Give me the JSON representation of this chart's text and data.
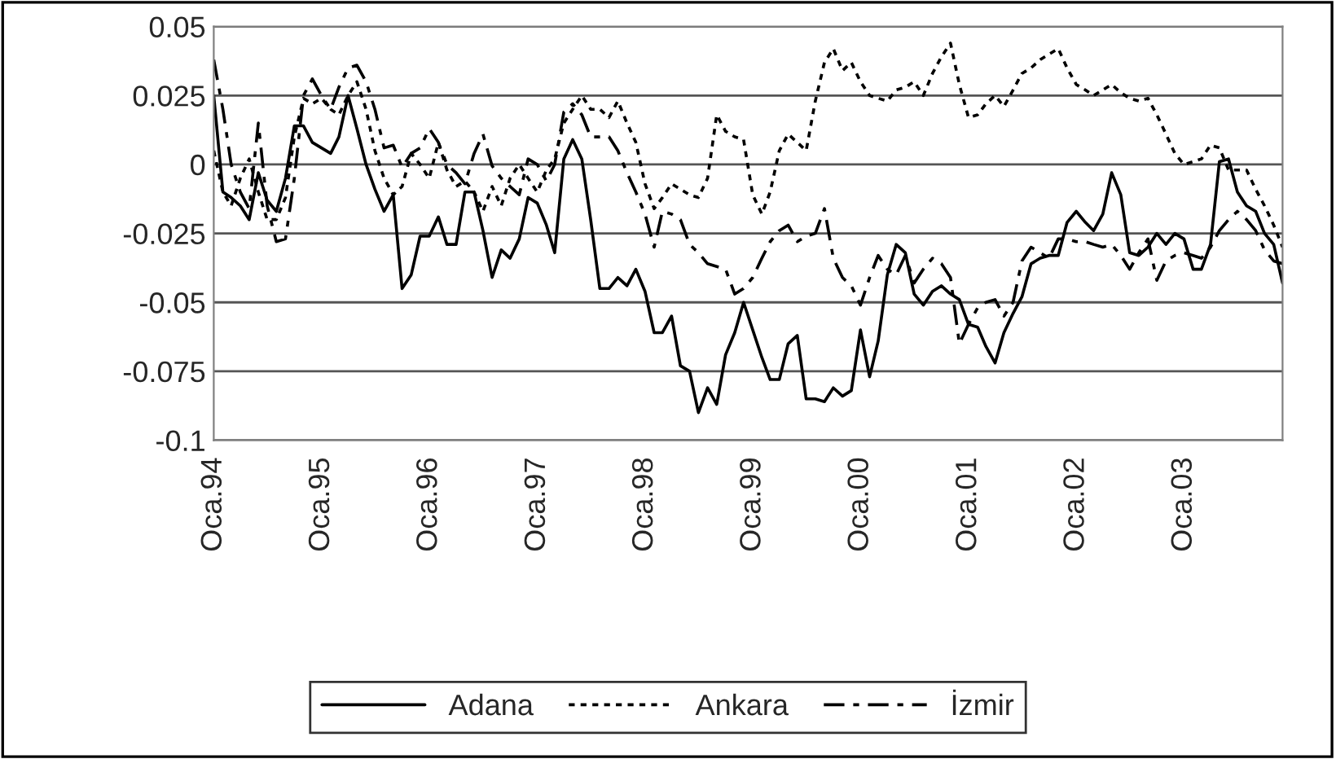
{
  "chart_data": {
    "type": "line",
    "x": [
      "1994-01",
      "1994-02",
      "1994-03",
      "1994-04",
      "1994-05",
      "1994-06",
      "1994-07",
      "1994-08",
      "1994-09",
      "1994-10",
      "1994-11",
      "1994-12",
      "1995-01",
      "1995-02",
      "1995-03",
      "1995-04",
      "1995-05",
      "1995-06",
      "1995-07",
      "1995-08",
      "1995-09",
      "1995-10",
      "1995-11",
      "1995-12",
      "1996-01",
      "1996-02",
      "1996-03",
      "1996-04",
      "1996-05",
      "1996-06",
      "1996-07",
      "1996-08",
      "1996-09",
      "1996-10",
      "1996-11",
      "1996-12",
      "1997-01",
      "1997-02",
      "1997-03",
      "1997-04",
      "1997-05",
      "1997-06",
      "1997-07",
      "1997-08",
      "1997-09",
      "1997-10",
      "1997-11",
      "1997-12",
      "1998-01",
      "1998-02",
      "1998-03",
      "1998-04",
      "1998-05",
      "1998-06",
      "1998-07",
      "1998-08",
      "1998-09",
      "1998-10",
      "1998-11",
      "1998-12",
      "1999-01",
      "1999-02",
      "1999-03",
      "1999-04",
      "1999-05",
      "1999-06",
      "1999-07",
      "1999-08",
      "1999-09",
      "1999-10",
      "1999-11",
      "1999-12",
      "2000-01",
      "2000-02",
      "2000-03",
      "2000-04",
      "2000-05",
      "2000-06",
      "2000-07",
      "2000-08",
      "2000-09",
      "2000-10",
      "2000-11",
      "2000-12",
      "2001-01",
      "2001-02",
      "2001-03",
      "2001-04",
      "2001-05",
      "2001-06",
      "2001-07",
      "2001-08",
      "2001-09",
      "2001-10",
      "2001-11",
      "2001-12",
      "2002-01",
      "2002-02",
      "2002-03",
      "2002-04",
      "2002-05",
      "2002-06",
      "2002-07",
      "2002-08",
      "2002-09",
      "2002-10",
      "2002-11",
      "2002-12",
      "2003-01",
      "2003-02",
      "2003-03",
      "2003-04",
      "2003-05",
      "2003-06",
      "2003-07",
      "2003-08",
      "2003-09",
      "2003-10",
      "2003-11",
      "2003-12"
    ],
    "series": [
      {
        "name": "Adana",
        "color": "#000000",
        "line_style": "solid",
        "values": [
          0.025,
          -0.01,
          -0.012,
          -0.015,
          -0.02,
          -0.003,
          -0.013,
          -0.017,
          -0.005,
          0.014,
          0.014,
          0.008,
          0.006,
          0.004,
          0.01,
          0.025,
          0.013,
          0.0,
          -0.009,
          -0.017,
          -0.011,
          -0.045,
          -0.04,
          -0.026,
          -0.026,
          -0.019,
          -0.029,
          -0.029,
          -0.01,
          -0.01,
          -0.024,
          -0.041,
          -0.031,
          -0.034,
          -0.027,
          -0.012,
          -0.014,
          -0.022,
          -0.032,
          0.002,
          0.009,
          0.002,
          -0.02,
          -0.045,
          -0.045,
          -0.041,
          -0.044,
          -0.038,
          -0.046,
          -0.061,
          -0.061,
          -0.055,
          -0.073,
          -0.075,
          -0.09,
          -0.081,
          -0.087,
          -0.069,
          -0.061,
          -0.05,
          -0.06,
          -0.07,
          -0.078,
          -0.078,
          -0.065,
          -0.062,
          -0.085,
          -0.085,
          -0.086,
          -0.081,
          -0.084,
          -0.082,
          -0.06,
          -0.077,
          -0.064,
          -0.04,
          -0.029,
          -0.032,
          -0.047,
          -0.051,
          -0.046,
          -0.044,
          -0.047,
          -0.049,
          -0.058,
          -0.059,
          -0.066,
          -0.072,
          -0.061,
          -0.054,
          -0.048,
          -0.036,
          -0.034,
          -0.033,
          -0.033,
          -0.021,
          -0.017,
          -0.021,
          -0.024,
          -0.018,
          -0.003,
          -0.011,
          -0.032,
          -0.033,
          -0.03,
          -0.025,
          -0.029,
          -0.025,
          -0.027,
          -0.038,
          -0.038,
          -0.029,
          0.001,
          0.002,
          -0.01,
          -0.015,
          -0.017,
          -0.025,
          -0.029,
          -0.043
        ]
      },
      {
        "name": "Ankara",
        "color": "#000000",
        "line_style": "dotted",
        "values": [
          0.005,
          -0.01,
          -0.015,
          -0.005,
          0.002,
          -0.01,
          -0.02,
          -0.02,
          -0.012,
          0.01,
          0.024,
          0.022,
          0.024,
          0.02,
          0.018,
          0.025,
          0.03,
          0.02,
          0.005,
          -0.005,
          -0.011,
          -0.008,
          0.004,
          0.0,
          -0.005,
          0.008,
          -0.002,
          -0.008,
          -0.006,
          -0.01,
          -0.017,
          -0.008,
          -0.015,
          -0.005,
          0.0,
          -0.005,
          -0.01,
          -0.002,
          0.002,
          0.015,
          0.02,
          0.025,
          0.02,
          0.02,
          0.017,
          0.023,
          0.015,
          0.008,
          -0.007,
          -0.016,
          -0.012,
          -0.007,
          -0.009,
          -0.011,
          -0.012,
          -0.005,
          0.018,
          0.012,
          0.01,
          0.009,
          -0.011,
          -0.018,
          -0.01,
          0.005,
          0.011,
          0.008,
          0.005,
          0.023,
          0.037,
          0.042,
          0.034,
          0.037,
          0.03,
          0.025,
          0.024,
          0.023,
          0.027,
          0.028,
          0.03,
          0.025,
          0.033,
          0.039,
          0.044,
          0.029,
          0.017,
          0.018,
          0.022,
          0.025,
          0.021,
          0.027,
          0.033,
          0.035,
          0.038,
          0.04,
          0.042,
          0.035,
          0.029,
          0.027,
          0.025,
          0.027,
          0.029,
          0.026,
          0.024,
          0.023,
          0.024,
          0.018,
          0.011,
          0.004,
          0.0,
          0.001,
          0.002,
          0.007,
          0.006,
          -0.002,
          -0.002,
          -0.002,
          -0.009,
          -0.015,
          -0.022,
          -0.03
        ]
      },
      {
        "name": "İzmir",
        "color": "#000000",
        "line_style": "dashed",
        "values": [
          0.038,
          0.02,
          0.0,
          -0.01,
          -0.016,
          0.015,
          -0.015,
          -0.028,
          -0.027,
          -0.005,
          0.025,
          0.031,
          0.025,
          0.02,
          0.028,
          0.035,
          0.036,
          0.03,
          0.02,
          0.006,
          0.007,
          -0.001,
          0.004,
          0.006,
          0.013,
          0.008,
          0.0,
          -0.003,
          -0.007,
          0.004,
          0.011,
          -0.0005,
          -0.005,
          -0.008,
          -0.011,
          0.002,
          0.0,
          -0.006,
          0.0,
          0.019,
          0.022,
          0.018,
          0.01,
          0.01,
          0.01,
          0.005,
          -0.003,
          -0.01,
          -0.018,
          -0.03,
          -0.017,
          -0.018,
          -0.02,
          -0.029,
          -0.032,
          -0.036,
          -0.037,
          -0.038,
          -0.047,
          -0.045,
          -0.041,
          -0.034,
          -0.028,
          -0.024,
          -0.022,
          -0.028,
          -0.026,
          -0.025,
          -0.016,
          -0.034,
          -0.041,
          -0.044,
          -0.051,
          -0.041,
          -0.033,
          -0.038,
          -0.04,
          -0.033,
          -0.043,
          -0.038,
          -0.034,
          -0.036,
          -0.041,
          -0.065,
          -0.058,
          -0.052,
          -0.05,
          -0.049,
          -0.055,
          -0.05,
          -0.035,
          -0.03,
          -0.032,
          -0.034,
          -0.027,
          -0.027,
          -0.028,
          -0.028,
          -0.029,
          -0.03,
          -0.029,
          -0.033,
          -0.038,
          -0.032,
          -0.027,
          -0.042,
          -0.035,
          -0.033,
          -0.032,
          -0.033,
          -0.034,
          -0.03,
          -0.024,
          -0.02,
          -0.017,
          -0.02,
          -0.024,
          -0.031,
          -0.035,
          -0.036
        ]
      }
    ],
    "xlim": [
      "1994-01",
      "2003-12"
    ],
    "xticks": [
      {
        "value": "1994-01",
        "label": "Oca.94"
      },
      {
        "value": "1995-01",
        "label": "Oca.95"
      },
      {
        "value": "1996-01",
        "label": "Oca.96"
      },
      {
        "value": "1997-01",
        "label": "Oca.97"
      },
      {
        "value": "1998-01",
        "label": "Oca.98"
      },
      {
        "value": "1999-01",
        "label": "Oca.99"
      },
      {
        "value": "2000-01",
        "label": "Oca.00"
      },
      {
        "value": "2001-01",
        "label": "Oca.01"
      },
      {
        "value": "2002-01",
        "label": "Oca.02"
      },
      {
        "value": "2003-01",
        "label": "Oca.03"
      }
    ],
    "ylim": [
      -0.1,
      0.05
    ],
    "yticks": [
      -0.1,
      -0.075,
      -0.05,
      -0.025,
      0,
      0.025,
      0.05
    ],
    "grid": "y",
    "legend": "bottom"
  }
}
